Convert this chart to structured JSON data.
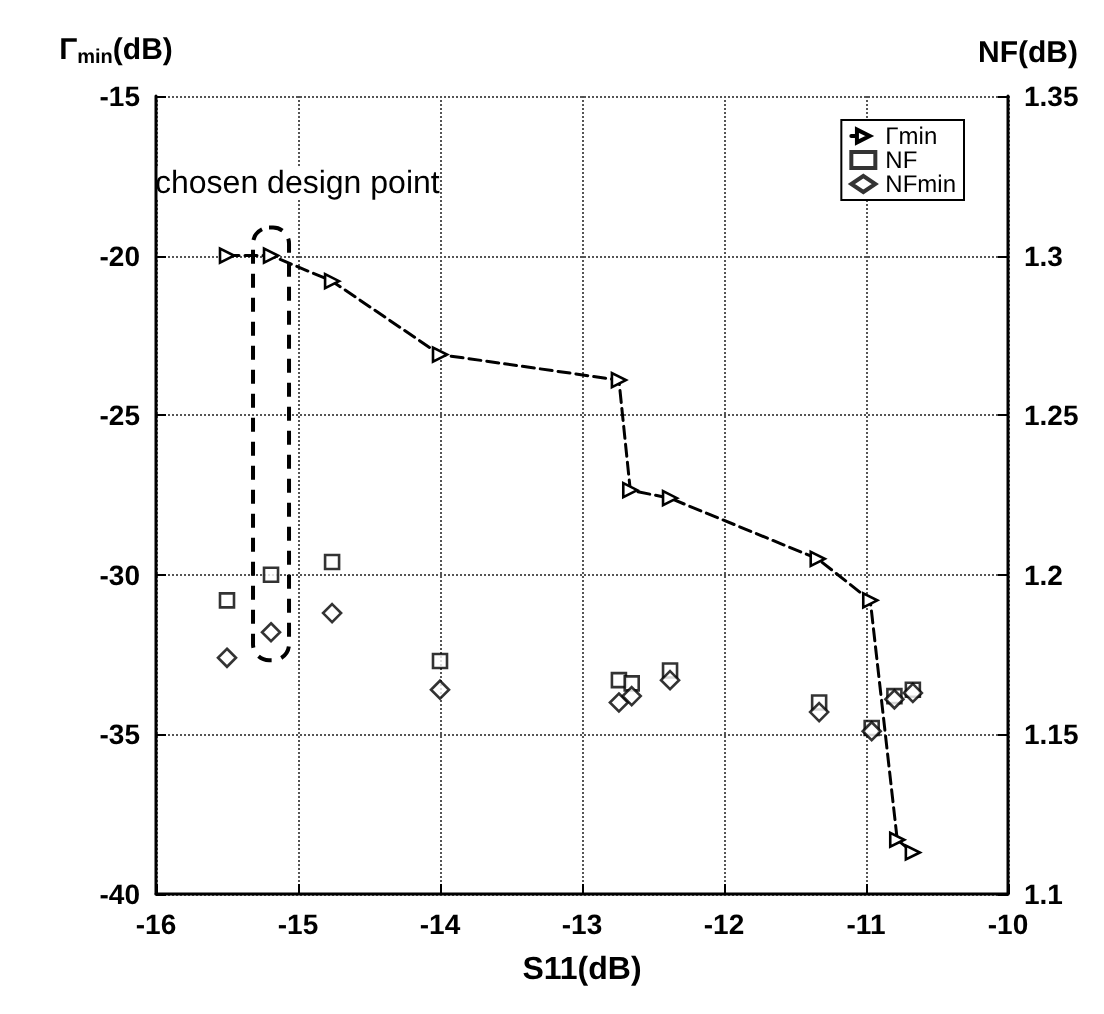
{
  "chart_data": {
    "type": "scatter",
    "xlabel": "S11(dB)",
    "ylabel": "Γ$_{min}$(dB)",
    "y2label": "NF(dB)",
    "annotations": [
      {
        "text": "chosen design point",
        "x": -15.19,
        "y": -20
      }
    ],
    "series": [
      {
        "name": "Γmin",
        "type": "line",
        "line_style": "dashed",
        "marker": "triangle",
        "color": "#000000",
        "x": [
          -15.5,
          -15.19,
          -14.76,
          -14.0,
          -12.74,
          -12.66,
          -12.38,
          -11.34,
          -10.97,
          -10.78,
          -10.67
        ],
        "values": [
          -20,
          -20,
          -20.8,
          -23.1,
          -23.9,
          -27.35,
          -27.6,
          -29.5,
          -30.8,
          -38.3,
          -38.7
        ]
      },
      {
        "name": "NF",
        "axis": "y2",
        "marker": "square",
        "color": "#000000",
        "x": [
          -15.5,
          -15.19,
          -14.76,
          -14.0,
          -12.74,
          -12.65,
          -12.38,
          -11.33,
          -10.96,
          -10.8,
          -10.67
        ],
        "values": [
          1.192,
          1.2,
          1.204,
          1.173,
          1.167,
          1.166,
          1.17,
          1.16,
          1.152,
          1.162,
          1.164
        ]
      },
      {
        "name": "NFmin",
        "axis": "y2",
        "marker": "diamond",
        "color": "#000000",
        "x": [
          -15.5,
          -15.19,
          -14.76,
          -14.0,
          -12.74,
          -12.65,
          -12.38,
          -11.33,
          -10.96,
          -10.8,
          -10.67
        ],
        "values": [
          1.174,
          1.182,
          1.188,
          1.164,
          1.16,
          1.162,
          1.167,
          1.157,
          1.151,
          1.161,
          1.163
        ]
      }
    ],
    "xlim": [
      -16,
      -10
    ],
    "xticks": [
      -16,
      -15,
      -14,
      -13,
      -12,
      -11,
      -10
    ],
    "ylim": [
      -40,
      -15
    ],
    "yticks": [
      -40,
      -35,
      -30,
      -25,
      -20,
      -15
    ],
    "y2lim": [
      1.1,
      1.35
    ],
    "y2ticks": [
      1.1,
      1.15,
      1.2,
      1.25,
      1.3,
      1.35
    ],
    "grid": true,
    "legend": "top right"
  }
}
